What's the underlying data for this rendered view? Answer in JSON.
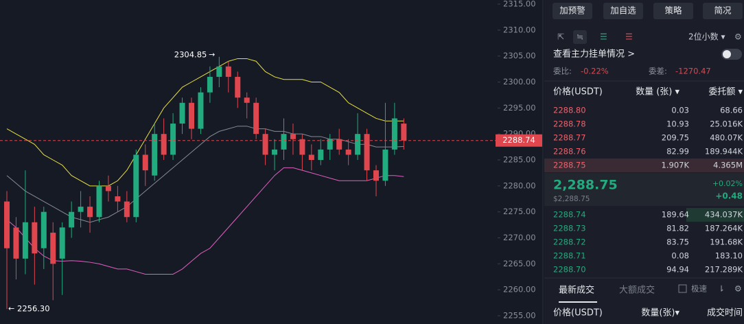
{
  "chart_data": {
    "type": "candlestick",
    "open": [
      2277,
      2272,
      2266,
      2273,
      2268,
      2271,
      2266,
      2272,
      2275,
      2276,
      2274,
      2280,
      2278,
      2277,
      2274,
      2286,
      2282,
      2290,
      2286,
      2292,
      2296,
      2291,
      2298,
      2301,
      2303,
      2301,
      2297,
      2296,
      2290,
      2286,
      2287,
      2290,
      2289,
      2286,
      2285,
      2287,
      2289,
      2287,
      2286,
      2290,
      2283,
      2281,
      2287,
      2292
    ],
    "high": [
      2279,
      2274,
      2283,
      2276,
      2276,
      2273,
      2273,
      2277,
      2279,
      2278,
      2281,
      2282,
      2280,
      2279,
      2287,
      2288,
      2292,
      2293,
      2294,
      2297,
      2297,
      2299,
      2303,
      2304.85,
      2304,
      2302,
      2298,
      2297,
      2291,
      2289,
      2293,
      2292,
      2290,
      2288,
      2289,
      2290,
      2291,
      2289,
      2294,
      2291,
      2284,
      2296,
      2296,
      2293
    ],
    "low": [
      2256.3,
      2262,
      2263,
      2261,
      2264,
      2258,
      2259,
      2270,
      2272,
      2271,
      2273,
      2277,
      2275,
      2273,
      2273,
      2280,
      2281,
      2285,
      2285,
      2290,
      2289,
      2290,
      2296,
      2299,
      2298,
      2295,
      2293,
      2289,
      2284,
      2283,
      2285,
      2286,
      2283,
      2283,
      2284,
      2285,
      2286,
      2284,
      2285,
      2281,
      2278,
      2280,
      2286,
      2287
    ],
    "close": [
      2268,
      2266,
      2273,
      2267,
      2275,
      2265,
      2272,
      2275,
      2276,
      2274,
      2280,
      2279,
      2277,
      2274,
      2286,
      2283,
      2290,
      2286,
      2292,
      2296,
      2291,
      2298,
      2301,
      2303,
      2301,
      2297,
      2296,
      2290,
      2286,
      2287,
      2290,
      2289,
      2286,
      2285,
      2287,
      2289,
      2287,
      2286,
      2290,
      2283,
      2281,
      2287,
      2293,
      2288.74
    ],
    "up_color": "#22ab7e",
    "down_color": "#e0464e",
    "bands": [
      {
        "color": "#e8e040",
        "values": [
          2291,
          2290,
          2289,
          2288,
          2286,
          2285,
          2284,
          2282,
          2281,
          2280,
          2280,
          2280,
          2281,
          2283,
          2286,
          2289,
          2292,
          2295,
          2297,
          2299,
          2300,
          2301,
          2302,
          2303,
          2304,
          2304.5,
          2304.5,
          2304,
          2302,
          2301,
          2300.5,
          2300.5,
          2300.5,
          2300,
          2300,
          2299,
          2298,
          2296,
          2295,
          2294,
          2293,
          2292.5,
          2292.5,
          2292.5
        ]
      },
      {
        "color": "#868b96",
        "values": [
          2282,
          2280.5,
          2279,
          2278,
          2277,
          2276,
          2275,
          2274,
          2273.5,
          2273,
          2273.5,
          2274,
          2275,
          2276,
          2277.5,
          2279,
          2280.5,
          2282,
          2283.5,
          2285,
          2286.5,
          2288,
          2289.5,
          2290.5,
          2291,
          2291.5,
          2291.5,
          2291,
          2291,
          2290.5,
          2290.5,
          2290,
          2290,
          2289.5,
          2289.5,
          2289,
          2289,
          2288.5,
          2288,
          2288,
          2287.5,
          2287.5,
          2287.5,
          2287.6
        ]
      },
      {
        "color": "#e060c0",
        "values": [
          2273.5,
          2272,
          2270,
          2268,
          2266.5,
          2265.6,
          2265.5,
          2265.6,
          2265.5,
          2265.3,
          2265,
          2264.5,
          2264,
          2264,
          2263.5,
          2263,
          2263,
          2263,
          2263,
          2264,
          2265.5,
          2267,
          2268,
          2270,
          2272,
          2274,
          2276,
          2278,
          2280,
          2282,
          2283.5,
          2283.5,
          2283,
          2282.5,
          2282,
          2281.5,
          2281,
          2281,
          2281,
          2281,
          2281.5,
          2282,
          2282,
          2281.8
        ]
      }
    ],
    "high_label": "2304.85",
    "low_label": "2256.30",
    "ylim": [
      2255,
      2315
    ],
    "yticks": [
      {
        "value": 2255,
        "label": "2255.00"
      },
      {
        "value": 2260,
        "label": "2260.00"
      },
      {
        "value": 2265,
        "label": "2265.00"
      },
      {
        "value": 2270,
        "label": "2270.00"
      },
      {
        "value": 2275,
        "label": "2275.00"
      },
      {
        "value": 2280,
        "label": "2280.00"
      },
      {
        "value": 2285,
        "label": "2285.00"
      },
      {
        "value": 2290,
        "label": "2290.00"
      },
      {
        "value": 2295,
        "label": "2295.00"
      },
      {
        "value": 2300,
        "label": "2300.00"
      },
      {
        "value": 2305,
        "label": "2305.00"
      },
      {
        "value": 2310,
        "label": "2310.00"
      },
      {
        "value": 2315,
        "label": "2315.00"
      }
    ]
  },
  "toolbar": {
    "buttons": [
      "加预警",
      "加自选",
      "策略",
      "简况"
    ],
    "decimals": "2位小数 ▾"
  },
  "order_book": {
    "link": "查看主力挂单情况 >",
    "ratio_label": "委比:",
    "ratio": "-0.22%",
    "diff_label": "委差:",
    "diff": "-1270.47",
    "headers": [
      "价格(USDT)",
      "数量 (张) ▾",
      "委托额 ▾"
    ],
    "asks": [
      [
        "2288.80",
        "0.03",
        "68.66"
      ],
      [
        "2288.78",
        "10.93",
        "25.016K"
      ],
      [
        "2288.77",
        "209.75",
        "480.07K"
      ],
      [
        "2288.76",
        "82.99",
        "189.944K"
      ],
      [
        "2288.75",
        "1.907K",
        "4.365M"
      ]
    ],
    "last": "2,288.75",
    "last_usd": "$2,288.75",
    "change_pct": "+0.02%",
    "change": "+0.48",
    "bids": [
      [
        "2288.74",
        "189.64",
        "434.037K"
      ],
      [
        "2288.73",
        "81.82",
        "187.264K"
      ],
      [
        "2288.72",
        "83.75",
        "191.68K"
      ],
      [
        "2288.71",
        "0.08",
        "183.10"
      ],
      [
        "2288.70",
        "94.94",
        "217.289K"
      ]
    ]
  },
  "trades": {
    "tabs": [
      "最新成交",
      "大额成交"
    ],
    "fast": "极速",
    "headers": [
      "价格(USDT)",
      "数量(张)▾",
      "成交时间"
    ]
  }
}
